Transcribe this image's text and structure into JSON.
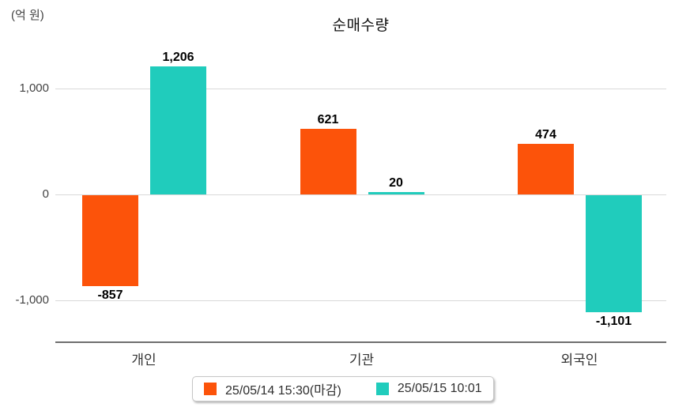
{
  "title": "순매수량",
  "unit_label": "(억 원)",
  "y_axis": {
    "tick_labels": [
      "1,000",
      "0",
      "-1,000"
    ],
    "tick_values": [
      1000,
      0,
      -1000
    ]
  },
  "chart_data": {
    "type": "bar",
    "title": "순매수량",
    "ylabel": "(억 원)",
    "categories": [
      "개인",
      "기관",
      "외국인"
    ],
    "series": [
      {
        "name": "25/05/14 15:30(마감)",
        "color": "#fc530a",
        "values": [
          -857,
          621,
          474
        ],
        "value_labels": [
          "-857",
          "621",
          "474"
        ]
      },
      {
        "name": "25/05/15 10:01",
        "color": "#20ccbc",
        "values": [
          1206,
          20,
          -1101
        ],
        "value_labels": [
          "1,206",
          "20",
          "-1,101"
        ]
      }
    ],
    "ylim": [
      -1400,
      1500
    ],
    "gridlines": [
      1000,
      0,
      -1000
    ],
    "grid": "horizontal-only",
    "legend_position": "bottom"
  },
  "legend": {
    "items": [
      {
        "label": "25/05/14 15:30(마감)",
        "color": "#fc530a"
      },
      {
        "label": "25/05/15 10:01",
        "color": "#20ccbc"
      }
    ]
  }
}
